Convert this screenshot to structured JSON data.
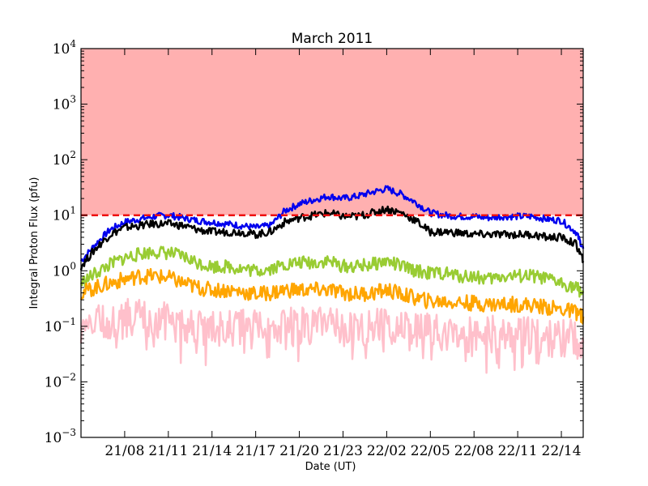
{
  "chart_data": {
    "type": "line",
    "title": "March 2011",
    "xlabel": "Date (UT)",
    "ylabel": "Integral Proton Flux (pfu)",
    "yscale": "log",
    "ylim": [
      0.001,
      10000
    ],
    "xlim": [
      "2011-03-21 05:00",
      "2011-03-22 15:30"
    ],
    "x_tick_labels": [
      "21/08",
      "21/11",
      "21/14",
      "21/17",
      "21/20",
      "21/23",
      "22/02",
      "22/05",
      "22/08",
      "22/11",
      "22/14"
    ],
    "y_tick_labels": [
      {
        "base": "10",
        "exp": "4"
      },
      {
        "base": "10",
        "exp": "3"
      },
      {
        "base": "10",
        "exp": "2"
      },
      {
        "base": "10",
        "exp": "1"
      },
      {
        "base": "10",
        "exp": "0"
      },
      {
        "base": "10",
        "exp": "−1"
      },
      {
        "base": "10",
        "exp": "−2"
      },
      {
        "base": "10",
        "exp": "−3"
      }
    ],
    "grid": false,
    "threshold": {
      "value": 10,
      "color": "#ee1111",
      "style": "dashed"
    },
    "shaded_region": {
      "from": 10,
      "to": 10000,
      "color": "#ffb0b0"
    },
    "series": [
      {
        "color": "#0000ee",
        "x": [
          "2011-03-21 05:00",
          "2011-03-21 06:00",
          "2011-03-21 07:00",
          "2011-03-21 08:00",
          "2011-03-21 09:00",
          "2011-03-21 10:00",
          "2011-03-21 11:00",
          "2011-03-21 12:00",
          "2011-03-21 13:00",
          "2011-03-21 14:00",
          "2011-03-21 15:00",
          "2011-03-21 16:00",
          "2011-03-21 17:00",
          "2011-03-21 18:00",
          "2011-03-21 19:00",
          "2011-03-21 20:00",
          "2011-03-21 21:00",
          "2011-03-21 22:00",
          "2011-03-21 23:00",
          "2011-03-22 00:00",
          "2011-03-22 01:00",
          "2011-03-22 02:00",
          "2011-03-22 03:00",
          "2011-03-22 04:00",
          "2011-03-22 05:00",
          "2011-03-22 06:00",
          "2011-03-22 07:00",
          "2011-03-22 08:00",
          "2011-03-22 09:00",
          "2011-03-22 10:00",
          "2011-03-22 11:00",
          "2011-03-22 12:00",
          "2011-03-22 13:00",
          "2011-03-22 14:00",
          "2011-03-22 15:00",
          "2011-03-22 15:30"
        ],
        "y": [
          1.5,
          3.0,
          5.5,
          7.5,
          8.5,
          9.5,
          10,
          9,
          8,
          7.5,
          7,
          6.5,
          6,
          6.5,
          12,
          16,
          19,
          22,
          20,
          22,
          26,
          30,
          24,
          17,
          11,
          10,
          9.5,
          9.5,
          9,
          9.5,
          9.5,
          9.5,
          8.5,
          8,
          5,
          2.5
        ]
      },
      {
        "color": "#000000",
        "x": [
          "2011-03-21 05:00",
          "2011-03-21 06:00",
          "2011-03-21 07:00",
          "2011-03-21 08:00",
          "2011-03-21 09:00",
          "2011-03-21 10:00",
          "2011-03-21 11:00",
          "2011-03-21 12:00",
          "2011-03-21 13:00",
          "2011-03-21 14:00",
          "2011-03-21 15:00",
          "2011-03-21 16:00",
          "2011-03-21 17:00",
          "2011-03-21 18:00",
          "2011-03-21 19:00",
          "2011-03-21 20:00",
          "2011-03-21 21:00",
          "2011-03-21 22:00",
          "2011-03-21 23:00",
          "2011-03-22 00:00",
          "2011-03-22 01:00",
          "2011-03-22 02:00",
          "2011-03-22 03:00",
          "2011-03-22 04:00",
          "2011-03-22 05:00",
          "2011-03-22 06:00",
          "2011-03-22 07:00",
          "2011-03-22 08:00",
          "2011-03-22 09:00",
          "2011-03-22 10:00",
          "2011-03-22 11:00",
          "2011-03-22 12:00",
          "2011-03-22 13:00",
          "2011-03-22 14:00",
          "2011-03-22 15:00",
          "2011-03-22 15:30"
        ],
        "y": [
          1.2,
          2.5,
          4.5,
          6,
          6.5,
          7,
          7,
          6.5,
          5.5,
          5,
          5,
          5,
          4.5,
          5,
          7.5,
          9,
          10,
          11,
          9.5,
          9.5,
          11,
          13,
          11,
          8,
          5,
          5,
          4.8,
          4.5,
          4.5,
          4.5,
          4.5,
          4.5,
          4,
          4,
          3,
          1.5
        ]
      },
      {
        "color": "#99cc33",
        "x": [
          "2011-03-21 05:00",
          "2011-03-21 06:00",
          "2011-03-21 07:00",
          "2011-03-21 08:00",
          "2011-03-21 09:00",
          "2011-03-21 10:00",
          "2011-03-21 11:00",
          "2011-03-21 12:00",
          "2011-03-21 13:00",
          "2011-03-21 14:00",
          "2011-03-21 15:00",
          "2011-03-21 16:00",
          "2011-03-21 17:00",
          "2011-03-21 18:00",
          "2011-03-21 19:00",
          "2011-03-21 20:00",
          "2011-03-21 21:00",
          "2011-03-21 22:00",
          "2011-03-21 23:00",
          "2011-03-22 00:00",
          "2011-03-22 01:00",
          "2011-03-22 02:00",
          "2011-03-22 03:00",
          "2011-03-22 04:00",
          "2011-03-22 05:00",
          "2011-03-22 06:00",
          "2011-03-22 07:00",
          "2011-03-22 08:00",
          "2011-03-22 09:00",
          "2011-03-22 10:00",
          "2011-03-22 11:00",
          "2011-03-22 12:00",
          "2011-03-22 13:00",
          "2011-03-22 14:00",
          "2011-03-22 15:00",
          "2011-03-22 15:30"
        ],
        "y": [
          0.6,
          0.9,
          1.3,
          1.7,
          2.0,
          2.2,
          2.1,
          1.8,
          1.4,
          1.2,
          1.2,
          1.1,
          1.0,
          1.1,
          1.3,
          1.4,
          1.4,
          1.5,
          1.2,
          1.2,
          1.3,
          1.5,
          1.2,
          1.0,
          0.9,
          0.9,
          0.8,
          0.8,
          0.7,
          0.8,
          0.8,
          0.8,
          0.7,
          0.6,
          0.5,
          0.4
        ]
      },
      {
        "color": "#ffa500",
        "x": [
          "2011-03-21 05:00",
          "2011-03-21 06:00",
          "2011-03-21 07:00",
          "2011-03-21 08:00",
          "2011-03-21 09:00",
          "2011-03-21 10:00",
          "2011-03-21 11:00",
          "2011-03-21 12:00",
          "2011-03-21 13:00",
          "2011-03-21 14:00",
          "2011-03-21 15:00",
          "2011-03-21 16:00",
          "2011-03-21 17:00",
          "2011-03-21 18:00",
          "2011-03-21 19:00",
          "2011-03-21 20:00",
          "2011-03-21 21:00",
          "2011-03-21 22:00",
          "2011-03-21 23:00",
          "2011-03-22 00:00",
          "2011-03-22 01:00",
          "2011-03-22 02:00",
          "2011-03-22 03:00",
          "2011-03-22 04:00",
          "2011-03-22 05:00",
          "2011-03-22 06:00",
          "2011-03-22 07:00",
          "2011-03-22 08:00",
          "2011-03-22 09:00",
          "2011-03-22 10:00",
          "2011-03-22 11:00",
          "2011-03-22 12:00",
          "2011-03-22 13:00",
          "2011-03-22 14:00",
          "2011-03-22 15:00",
          "2011-03-22 15:30"
        ],
        "y": [
          0.4,
          0.5,
          0.6,
          0.7,
          0.8,
          0.8,
          0.75,
          0.6,
          0.5,
          0.45,
          0.45,
          0.42,
          0.38,
          0.4,
          0.45,
          0.45,
          0.45,
          0.45,
          0.4,
          0.38,
          0.4,
          0.45,
          0.38,
          0.32,
          0.28,
          0.28,
          0.27,
          0.26,
          0.25,
          0.25,
          0.25,
          0.24,
          0.22,
          0.2,
          0.18,
          0.15
        ]
      },
      {
        "color": "#ffc0cb",
        "x": [
          "2011-03-21 05:00",
          "2011-03-21 06:00",
          "2011-03-21 07:00",
          "2011-03-21 08:00",
          "2011-03-21 09:00",
          "2011-03-21 10:00",
          "2011-03-21 11:00",
          "2011-03-21 12:00",
          "2011-03-21 13:00",
          "2011-03-21 14:00",
          "2011-03-21 15:00",
          "2011-03-21 16:00",
          "2011-03-21 17:00",
          "2011-03-21 18:00",
          "2011-03-21 19:00",
          "2011-03-21 20:00",
          "2011-03-21 21:00",
          "2011-03-21 22:00",
          "2011-03-21 23:00",
          "2011-03-22 00:00",
          "2011-03-22 01:00",
          "2011-03-22 02:00",
          "2011-03-22 03:00",
          "2011-03-22 04:00",
          "2011-03-22 05:00",
          "2011-03-22 06:00",
          "2011-03-22 07:00",
          "2011-03-22 08:00",
          "2011-03-22 09:00",
          "2011-03-22 10:00",
          "2011-03-22 11:00",
          "2011-03-22 12:00",
          "2011-03-22 13:00",
          "2011-03-22 14:00",
          "2011-03-22 15:00",
          "2011-03-22 15:30"
        ],
        "y": [
          0.1,
          0.12,
          0.13,
          0.14,
          0.15,
          0.14,
          0.12,
          0.1,
          0.09,
          0.09,
          0.09,
          0.09,
          0.09,
          0.09,
          0.1,
          0.1,
          0.1,
          0.1,
          0.09,
          0.09,
          0.1,
          0.1,
          0.09,
          0.08,
          0.08,
          0.08,
          0.07,
          0.07,
          0.07,
          0.07,
          0.07,
          0.07,
          0.06,
          0.06,
          0.06,
          0.05
        ]
      }
    ]
  }
}
